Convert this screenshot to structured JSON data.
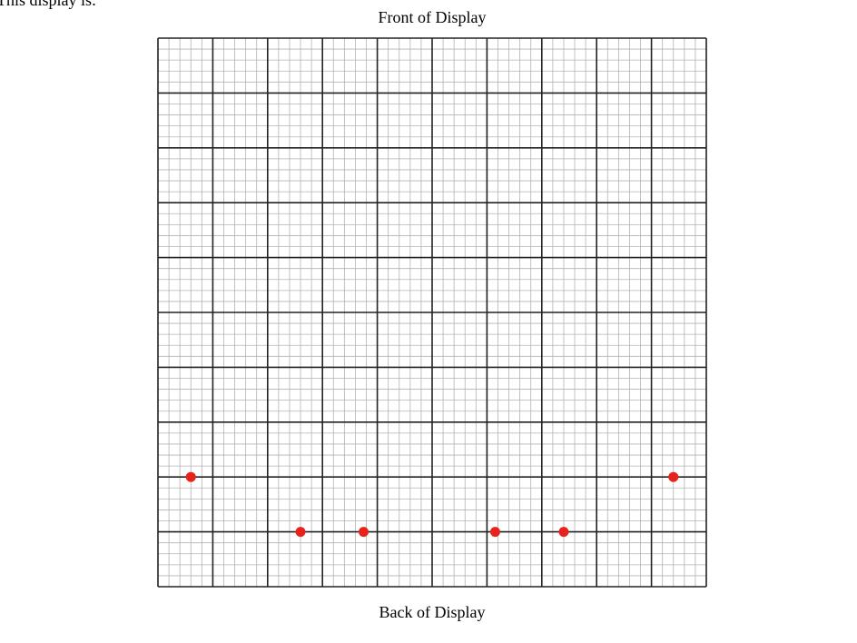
{
  "intro_text": "This display is:",
  "front_label": "Front of Display",
  "back_label": "Back of Display",
  "grid": {
    "major_cells": 10,
    "minor_per_major": 5,
    "major_color": "#222222",
    "minor_color": "#b3b3b3"
  },
  "points": {
    "color": "#e8231b",
    "items": [
      {
        "col": 0.6,
        "row": 8
      },
      {
        "col": 2.6,
        "row": 9
      },
      {
        "col": 3.75,
        "row": 9
      },
      {
        "col": 6.15,
        "row": 9
      },
      {
        "col": 7.4,
        "row": 9
      },
      {
        "col": 9.4,
        "row": 8
      }
    ]
  }
}
